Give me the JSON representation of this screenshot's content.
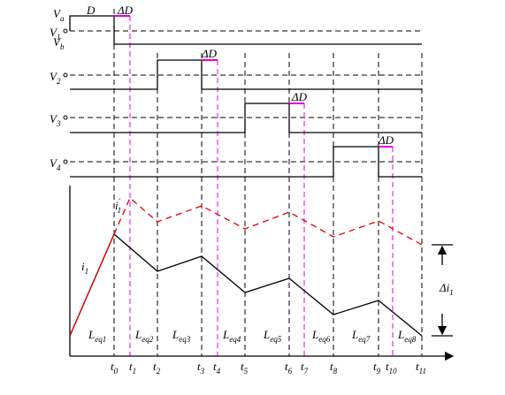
{
  "top": {
    "va": {
      "base": "V",
      "sub": "a"
    },
    "vb": {
      "base": "V",
      "sub": "b"
    },
    "d": "D"
  },
  "voltages": [
    {
      "base": "V",
      "sub": "1"
    },
    {
      "base": "V",
      "sub": "2"
    },
    {
      "base": "V",
      "sub": "3"
    },
    {
      "base": "V",
      "sub": "4"
    }
  ],
  "delta_d": [
    "ΔD",
    "ΔD",
    "ΔD",
    "ΔD"
  ],
  "currents": {
    "i1_prime": {
      "base": "i",
      "sub": "1",
      "sup": "'"
    },
    "i1": {
      "base": "i",
      "sub": "1"
    },
    "delta_i": {
      "base": "Δi",
      "sub": "1"
    }
  },
  "inductances": [
    {
      "base": "L",
      "sub": "eq1"
    },
    {
      "base": "L",
      "sub": "eq2"
    },
    {
      "base": "L",
      "sub": "eq3"
    },
    {
      "base": "L",
      "sub": "eq4"
    },
    {
      "base": "L",
      "sub": "eq5"
    },
    {
      "base": "L",
      "sub": "eq6"
    },
    {
      "base": "L",
      "sub": "eq7"
    },
    {
      "base": "L",
      "sub": "eq8"
    }
  ],
  "times": [
    {
      "base": "t",
      "sub": "0"
    },
    {
      "base": "t",
      "sub": "1"
    },
    {
      "base": "t",
      "sub": "2"
    },
    {
      "base": "t",
      "sub": "3"
    },
    {
      "base": "t",
      "sub": "4"
    },
    {
      "base": "t",
      "sub": "5"
    },
    {
      "base": "t",
      "sub": "6"
    },
    {
      "base": "t",
      "sub": "7"
    },
    {
      "base": "t",
      "sub": "8"
    },
    {
      "base": "t",
      "sub": "9"
    },
    {
      "base": "t",
      "sub": "10"
    },
    {
      "base": "t",
      "sub": "11"
    }
  ]
}
